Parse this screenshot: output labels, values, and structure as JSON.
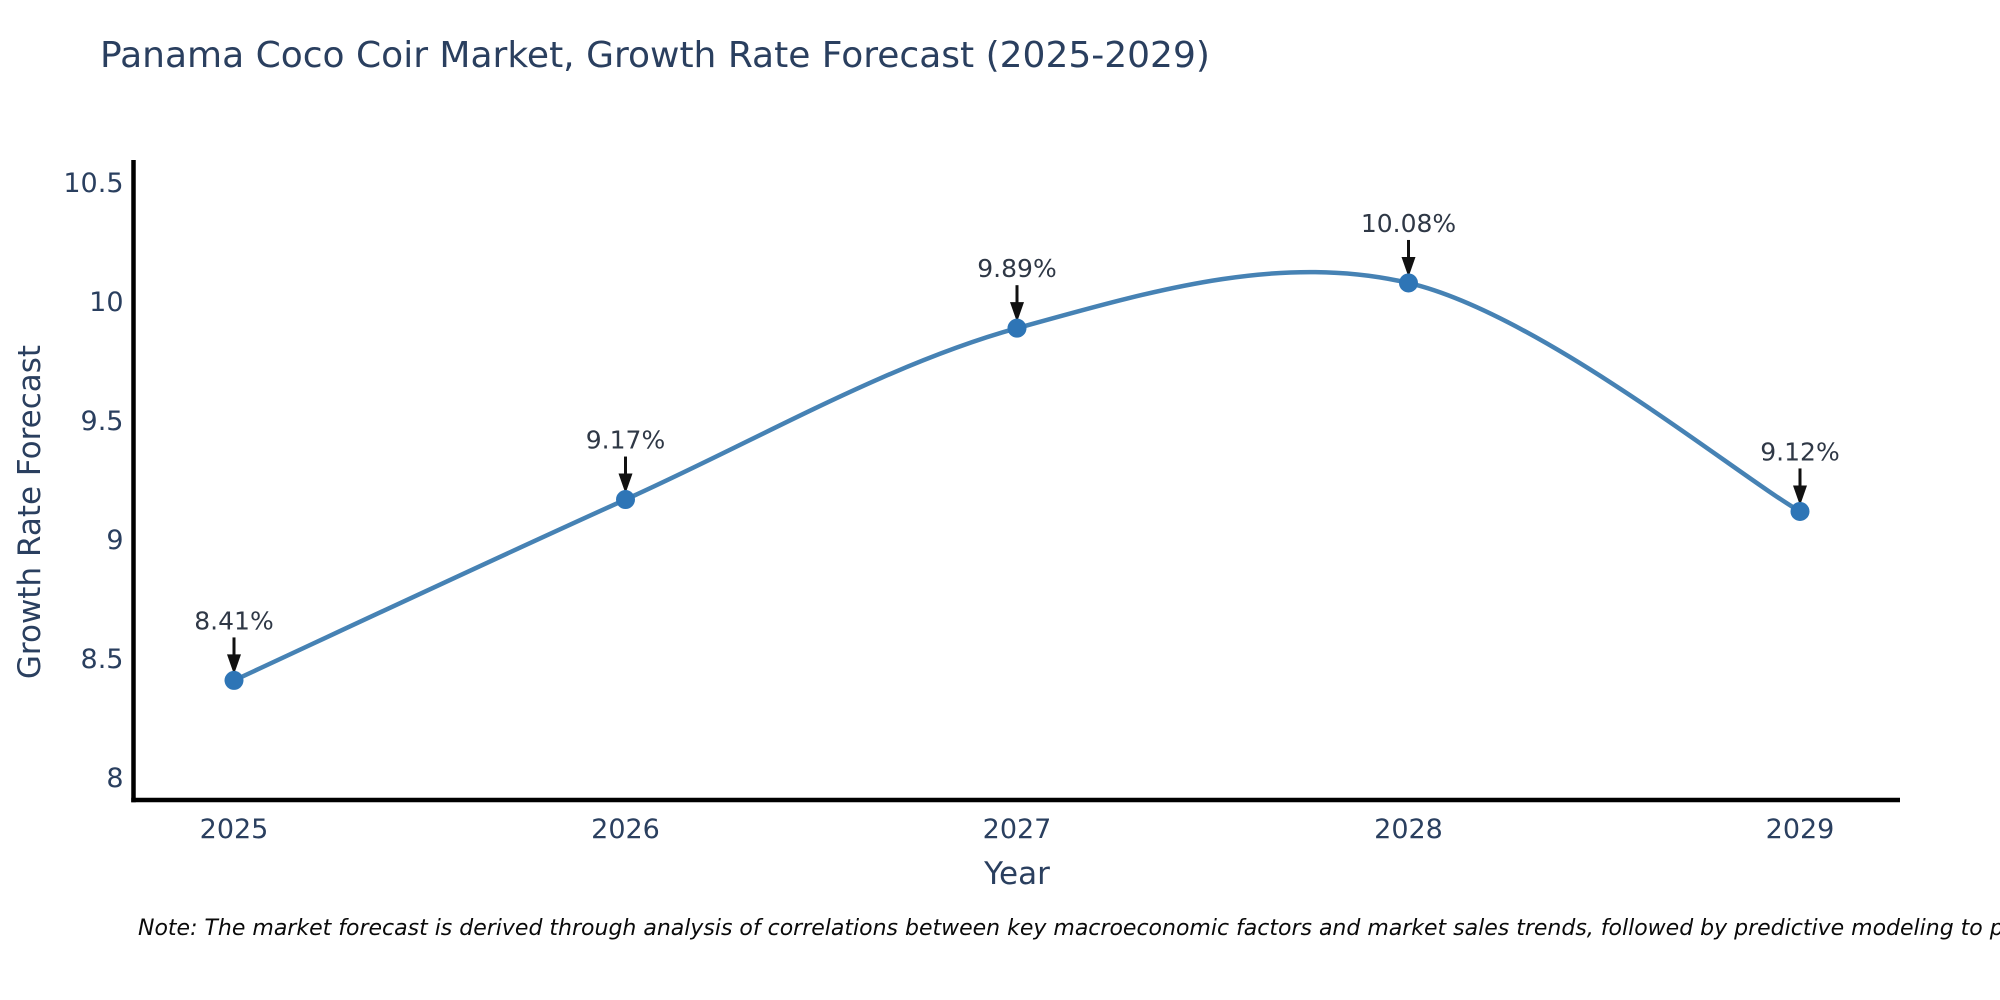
{
  "chart_data": {
    "type": "line",
    "title": "Panama Coco Coir Market, Growth Rate Forecast (2025-2029)",
    "xlabel": "Year",
    "ylabel": "Growth Rate Forecast",
    "categories": [
      2025,
      2026,
      2027,
      2028,
      2029
    ],
    "values": [
      8.41,
      9.17,
      9.89,
      10.08,
      9.12
    ],
    "point_labels": [
      "8.41%",
      "9.17%",
      "9.89%",
      "10.08%",
      "9.12%"
    ],
    "x_tick_labels": [
      "2025",
      "2026",
      "2027",
      "2028",
      "2029"
    ],
    "y_tick_labels": [
      "8",
      "8.5",
      "9",
      "9.5",
      "10",
      "10.5"
    ],
    "y_ticks": [
      8,
      8.5,
      9,
      9.5,
      10,
      10.5
    ],
    "ylim": [
      7.9,
      10.6
    ],
    "line_shape": "spline",
    "grid": false,
    "legend": "none",
    "note": "Note: The market forecast is derived through analysis of correlations between key macroeconomic factors and market sales trends, followed by predictive modeling to project future sal",
    "colors": {
      "line": "#4682b4",
      "marker": "#2e75b6",
      "title_text": "#2a3f5f",
      "tick_text": "#2a3f5f",
      "annotation_text": "#2f3846",
      "arrow": "#111111",
      "axis_line": "#000000",
      "note_text": "#0a0a0a",
      "background": "#ffffff"
    }
  }
}
